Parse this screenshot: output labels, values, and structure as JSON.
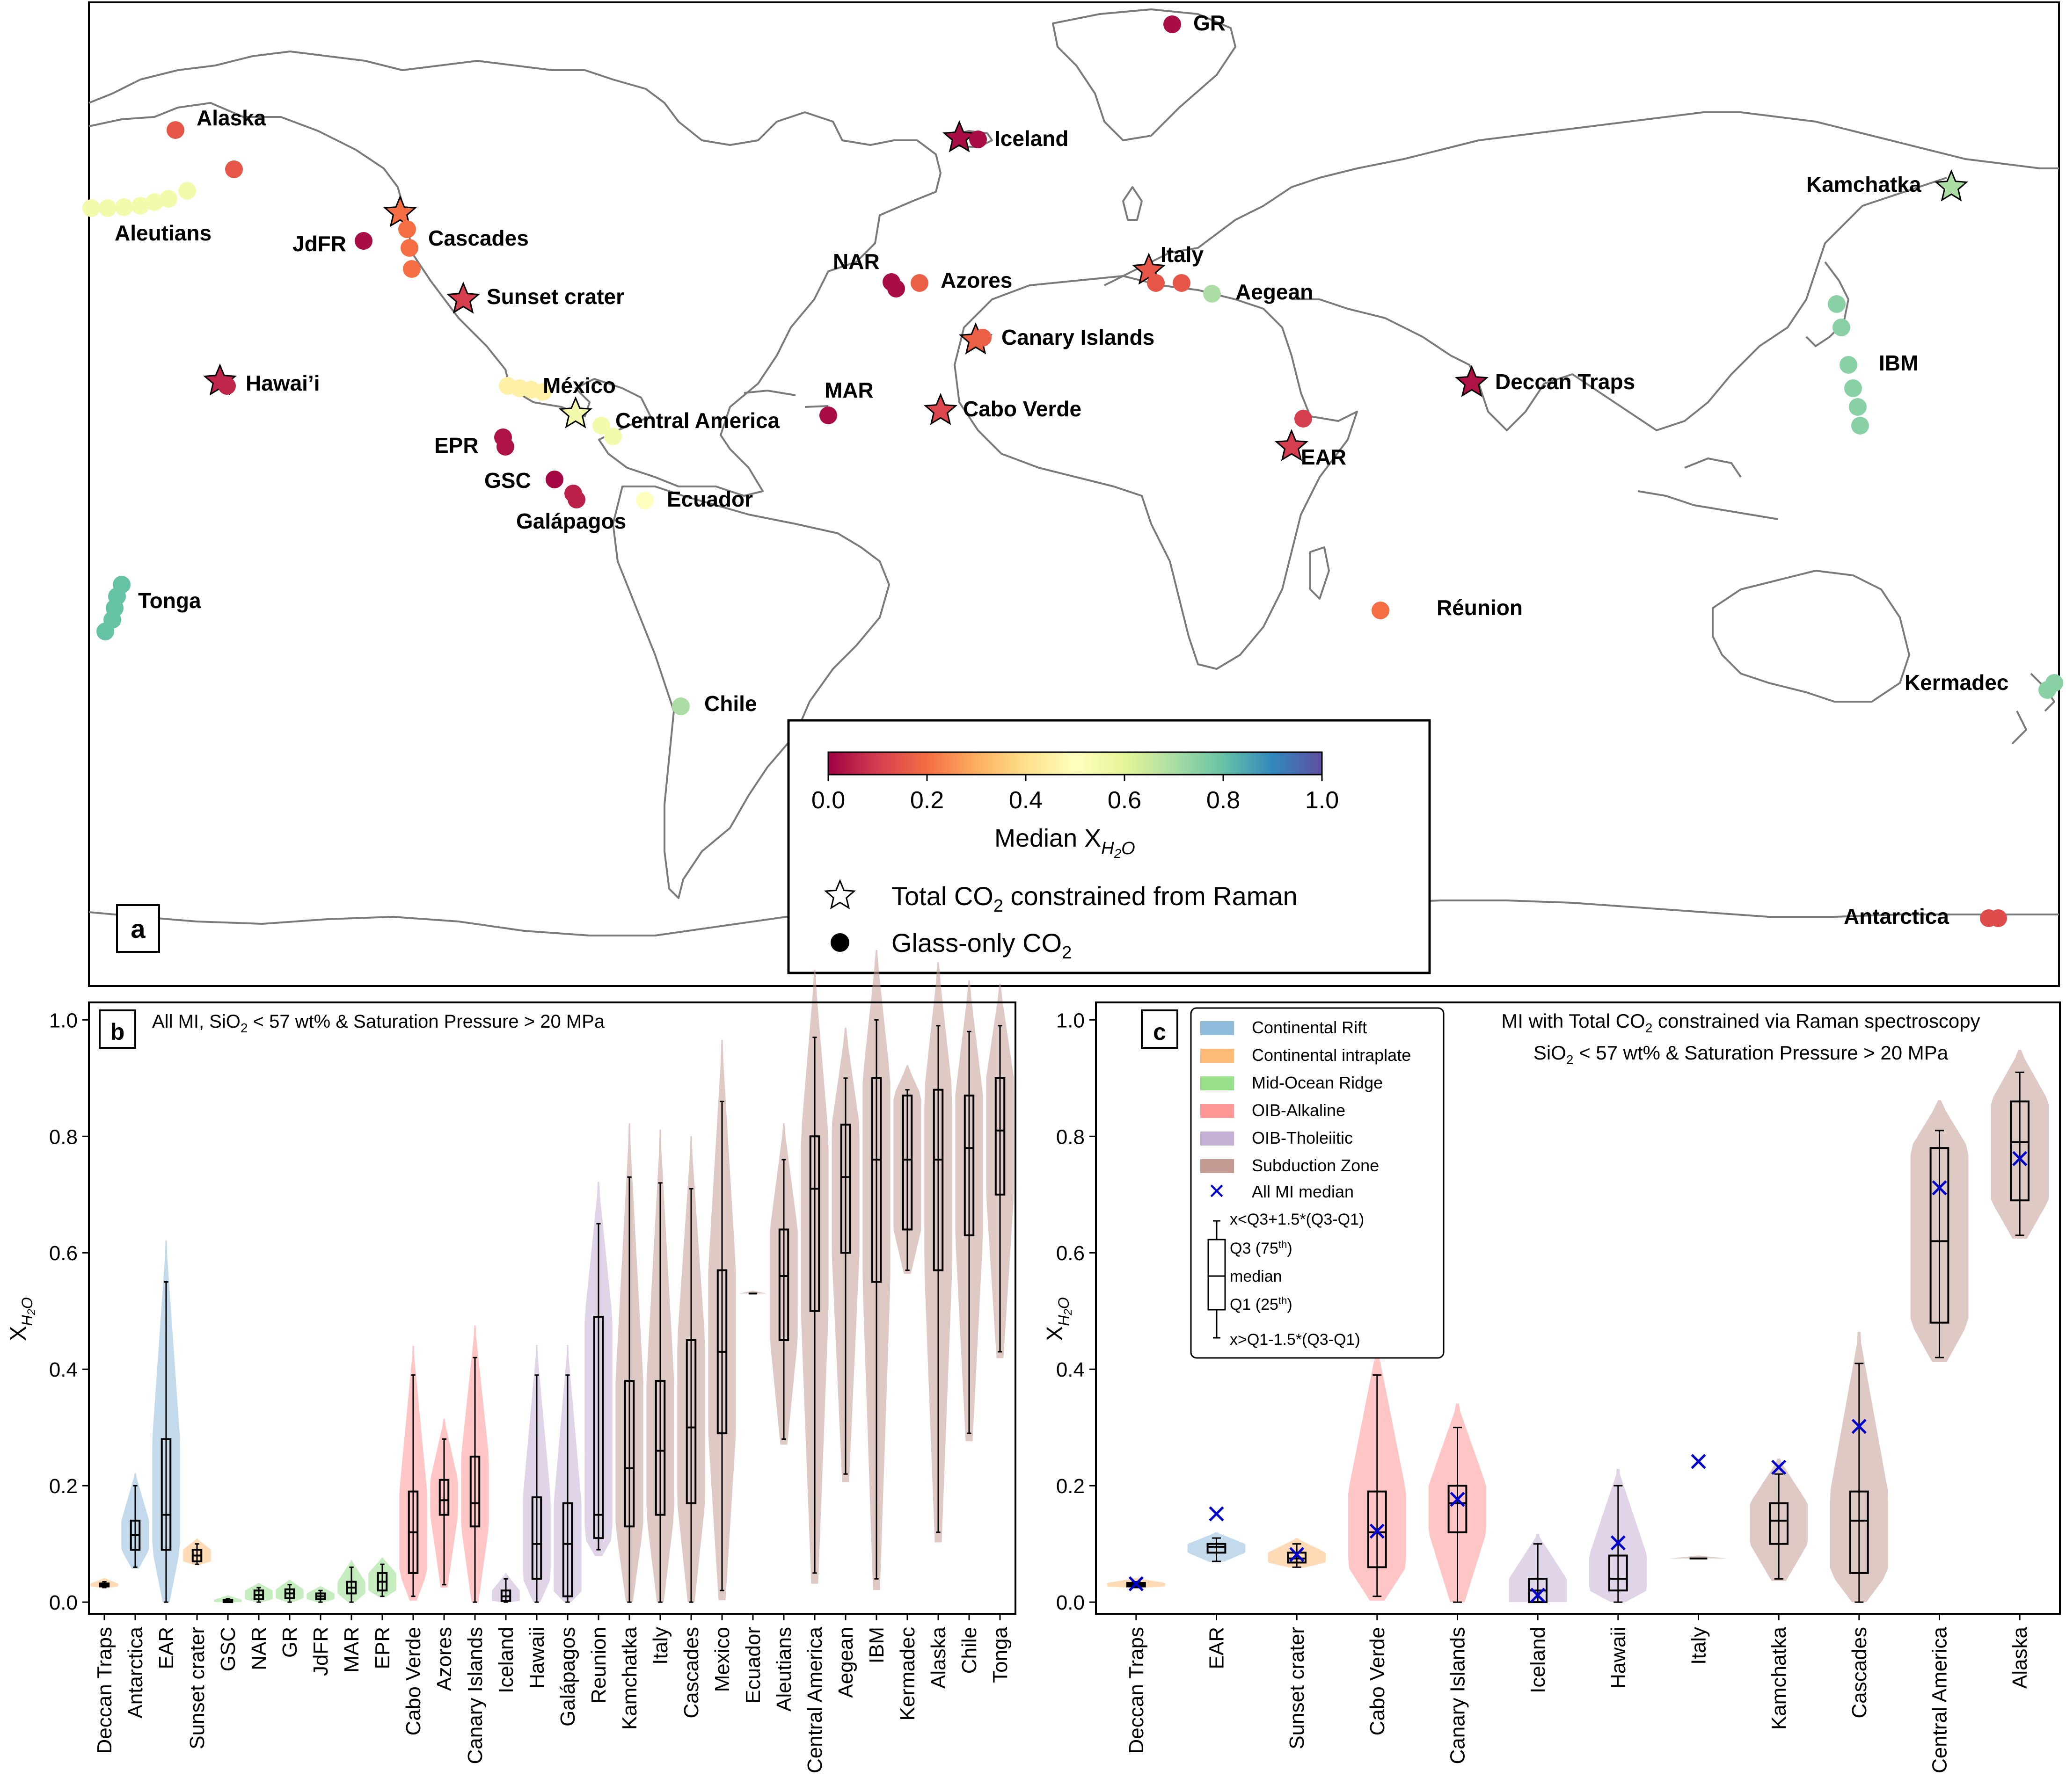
{
  "panels": {
    "a": {
      "letter": "a",
      "colorbar": {
        "label": "Median X",
        "label_sub": "H2O",
        "ticks": [
          "0.0",
          "0.2",
          "0.4",
          "0.6",
          "0.8",
          "1.0"
        ],
        "colormap": [
          "#9e0142",
          "#d53e4f",
          "#f46d43",
          "#fdae61",
          "#fee08b",
          "#ffffbf",
          "#e6f598",
          "#abdda4",
          "#66c2a5",
          "#3288bd",
          "#5e4fa2"
        ]
      },
      "legend": {
        "star_label": "Total CO",
        "star_label_sub": "2",
        "star_label_tail": " constrained from Raman",
        "dot_label": "Glass-only CO",
        "dot_label_sub": "2"
      },
      "sites": [
        {
          "name": "GR",
          "value": 0.02,
          "marker": "circle"
        },
        {
          "name": "Alaska",
          "value": 0.15,
          "marker": "circle"
        },
        {
          "name": "Iceland",
          "value": 0.02,
          "marker": "star"
        },
        {
          "name": "Aleutians",
          "value": 0.55,
          "marker": "circle"
        },
        {
          "name": "JdFR",
          "value": 0.02,
          "marker": "circle"
        },
        {
          "name": "Cascades",
          "value": 0.2,
          "marker": "star"
        },
        {
          "name": "Kamchatka",
          "value": 0.7,
          "marker": "star"
        },
        {
          "name": "NAR",
          "value": 0.02,
          "marker": "circle"
        },
        {
          "name": "Azores",
          "value": 0.17,
          "marker": "circle"
        },
        {
          "name": "Italy",
          "value": 0.15,
          "marker": "star"
        },
        {
          "name": "Aegean",
          "value": 0.7,
          "marker": "circle"
        },
        {
          "name": "Sunset crater",
          "value": 0.1,
          "marker": "star"
        },
        {
          "name": "Canary Islands",
          "value": 0.17,
          "marker": "star"
        },
        {
          "name": "Hawai’i",
          "value": 0.06,
          "marker": "star"
        },
        {
          "name": "México",
          "value": 0.45,
          "marker": "circle"
        },
        {
          "name": "Deccan Traps",
          "value": 0.03,
          "marker": "star"
        },
        {
          "name": "IBM",
          "value": 0.75,
          "marker": "circle"
        },
        {
          "name": "MAR",
          "value": 0.02,
          "marker": "circle"
        },
        {
          "name": "Central America",
          "value": 0.55,
          "marker": "star"
        },
        {
          "name": "Cabo Verde",
          "value": 0.12,
          "marker": "star"
        },
        {
          "name": "EPR",
          "value": 0.03,
          "marker": "circle"
        },
        {
          "name": "EAR",
          "value": 0.1,
          "marker": "star"
        },
        {
          "name": "GSC",
          "value": 0.01,
          "marker": "circle"
        },
        {
          "name": "Galápagos",
          "value": 0.05,
          "marker": "circle"
        },
        {
          "name": "Ecuador",
          "value": 0.5,
          "marker": "circle"
        },
        {
          "name": "Tonga",
          "value": 0.8,
          "marker": "circle"
        },
        {
          "name": "Réunion",
          "value": 0.2,
          "marker": "circle"
        },
        {
          "name": "Kermadec",
          "value": 0.75,
          "marker": "circle"
        },
        {
          "name": "Chile",
          "value": 0.7,
          "marker": "circle"
        },
        {
          "name": "Antarctica",
          "value": 0.13,
          "marker": "circle"
        }
      ]
    },
    "b": {
      "letter": "b",
      "title": "All MI, SiO",
      "title_sub": "2",
      "title_tail": " < 57 wt% & Saturation Pressure > 20 MPa",
      "ylabel": "X",
      "ylabel_sub": "H2O"
    },
    "c": {
      "letter": "c",
      "title_line1": "MI with Total CO",
      "title_line1_sub": "2",
      "title_line1_tail": " constrained via Raman spectroscopy",
      "title_line2": "SiO",
      "title_line2_sub": "2",
      "title_line2_tail": " < 57 wt% & Saturation Pressure > 20 MPa",
      "ylabel": "X",
      "ylabel_sub": "H2O",
      "legend": {
        "items": [
          {
            "label": "Continental Rift",
            "color": "#8fbcdb"
          },
          {
            "label": "Continental intraplate",
            "color": "#ffbb78"
          },
          {
            "label": "Mid-Ocean Ridge",
            "color": "#98df8a"
          },
          {
            "label": "OIB-Alkaline",
            "color": "#ff9896"
          },
          {
            "label": "OIB-Tholeiitic",
            "color": "#c5b0d5"
          },
          {
            "label": "Subduction Zone",
            "color": "#c49c94"
          }
        ],
        "median_label": "All MI median",
        "box_upper": "x<Q3+1.5*(Q3-Q1)",
        "box_q3": "Q3 (75",
        "box_q3_sup": "th",
        "box_q3_tail": ")",
        "box_median": "median",
        "box_q1": "Q1 (25",
        "box_q1_sup": "th",
        "box_q1_tail": ")",
        "box_lower": "x>Q1-1.5*(Q3-Q1)"
      }
    }
  },
  "chart_data": [
    {
      "type": "scatter",
      "title": "",
      "colorbar_label": "Median X_H2O",
      "clim": [
        0.0,
        1.0
      ],
      "points": [
        {
          "site": "GR",
          "median_xh2o": 0.02
        },
        {
          "site": "Alaska",
          "median_xh2o": 0.15
        },
        {
          "site": "Iceland",
          "median_xh2o": 0.02
        },
        {
          "site": "Aleutians",
          "median_xh2o": 0.55
        },
        {
          "site": "JdFR",
          "median_xh2o": 0.02
        },
        {
          "site": "Cascades",
          "median_xh2o": 0.2
        },
        {
          "site": "Kamchatka",
          "median_xh2o": 0.7
        },
        {
          "site": "NAR",
          "median_xh2o": 0.02
        },
        {
          "site": "Azores",
          "median_xh2o": 0.17
        },
        {
          "site": "Italy",
          "median_xh2o": 0.15
        },
        {
          "site": "Aegean",
          "median_xh2o": 0.7
        },
        {
          "site": "Sunset crater",
          "median_xh2o": 0.1
        },
        {
          "site": "Canary Islands",
          "median_xh2o": 0.17
        },
        {
          "site": "Hawai’i",
          "median_xh2o": 0.06
        },
        {
          "site": "México",
          "median_xh2o": 0.45
        },
        {
          "site": "Deccan Traps",
          "median_xh2o": 0.03
        },
        {
          "site": "IBM",
          "median_xh2o": 0.75
        },
        {
          "site": "MAR",
          "median_xh2o": 0.02
        },
        {
          "site": "Central America",
          "median_xh2o": 0.55
        },
        {
          "site": "Cabo Verde",
          "median_xh2o": 0.12
        },
        {
          "site": "EPR",
          "median_xh2o": 0.03
        },
        {
          "site": "EAR",
          "median_xh2o": 0.1
        },
        {
          "site": "GSC",
          "median_xh2o": 0.01
        },
        {
          "site": "Galápagos",
          "median_xh2o": 0.05
        },
        {
          "site": "Ecuador",
          "median_xh2o": 0.5
        },
        {
          "site": "Tonga",
          "median_xh2o": 0.8
        },
        {
          "site": "Réunion",
          "median_xh2o": 0.2
        },
        {
          "site": "Kermadec",
          "median_xh2o": 0.75
        },
        {
          "site": "Chile",
          "median_xh2o": 0.7
        },
        {
          "site": "Antarctica",
          "median_xh2o": 0.13
        }
      ]
    },
    {
      "type": "box",
      "title": "All MI, SiO2 < 57 wt% & Saturation Pressure > 20 MPa",
      "ylabel": "X_H2O",
      "ylim": [
        -0.02,
        1.03
      ],
      "yticks": [
        "0.0",
        "0.2",
        "0.4",
        "0.6",
        "0.8",
        "1.0"
      ],
      "categories": [
        "Deccan Traps",
        "Antarctica",
        "EAR",
        "Sunset crater",
        "GSC",
        "NAR",
        "GR",
        "JdFR",
        "MAR",
        "EPR",
        "Cabo Verde",
        "Azores",
        "Canary Islands",
        "Iceland",
        "Hawaii",
        "Galápagos",
        "Reunion",
        "Kamchatka",
        "Italy",
        "Cascades",
        "Mexico",
        "Ecuador",
        "Aleutians",
        "Central America",
        "Aegean",
        "IBM",
        "Kermadec",
        "Alaska",
        "Chile",
        "Tonga"
      ],
      "groups": [
        "Continental intraplate",
        "Continental Rift",
        "Continental Rift",
        "Continental intraplate",
        "Mid-Ocean Ridge",
        "Mid-Ocean Ridge",
        "Mid-Ocean Ridge",
        "Mid-Ocean Ridge",
        "Mid-Ocean Ridge",
        "Mid-Ocean Ridge",
        "OIB-Alkaline",
        "OIB-Alkaline",
        "OIB-Alkaline",
        "OIB-Tholeiitic",
        "OIB-Tholeiitic",
        "OIB-Tholeiitic",
        "OIB-Tholeiitic",
        "Subduction Zone",
        "Subduction Zone",
        "Subduction Zone",
        "Subduction Zone",
        "Subduction Zone",
        "Subduction Zone",
        "Subduction Zone",
        "Subduction Zone",
        "Subduction Zone",
        "Subduction Zone",
        "Subduction Zone",
        "Subduction Zone",
        "Subduction Zone"
      ],
      "whisker_low": [
        0.025,
        0.06,
        0.0,
        0.065,
        0.0,
        0.0,
        0.0,
        0.0,
        0.0,
        0.01,
        0.01,
        0.03,
        0.0,
        0.0,
        0.0,
        0.0,
        0.09,
        0.0,
        0.0,
        0.0,
        0.02,
        0.53,
        0.28,
        0.05,
        0.22,
        0.04,
        0.57,
        0.12,
        0.29,
        0.43
      ],
      "q1": [
        0.027,
        0.09,
        0.09,
        0.07,
        0.0,
        0.005,
        0.007,
        0.005,
        0.015,
        0.02,
        0.05,
        0.15,
        0.13,
        0.002,
        0.04,
        0.01,
        0.11,
        0.13,
        0.15,
        0.17,
        0.29,
        0.53,
        0.45,
        0.5,
        0.6,
        0.55,
        0.64,
        0.57,
        0.63,
        0.7
      ],
      "median": [
        0.03,
        0.115,
        0.15,
        0.08,
        0.002,
        0.012,
        0.015,
        0.01,
        0.025,
        0.035,
        0.12,
        0.175,
        0.17,
        0.01,
        0.1,
        0.1,
        0.15,
        0.23,
        0.26,
        0.3,
        0.43,
        0.53,
        0.56,
        0.71,
        0.73,
        0.76,
        0.76,
        0.76,
        0.78,
        0.81
      ],
      "q3": [
        0.032,
        0.14,
        0.28,
        0.09,
        0.004,
        0.02,
        0.022,
        0.015,
        0.035,
        0.05,
        0.19,
        0.21,
        0.25,
        0.02,
        0.18,
        0.17,
        0.49,
        0.38,
        0.38,
        0.45,
        0.57,
        0.53,
        0.64,
        0.8,
        0.82,
        0.9,
        0.87,
        0.88,
        0.87,
        0.9
      ],
      "whisker_high": [
        0.035,
        0.2,
        0.55,
        0.1,
        0.006,
        0.025,
        0.03,
        0.02,
        0.06,
        0.065,
        0.39,
        0.28,
        0.42,
        0.04,
        0.39,
        0.39,
        0.65,
        0.73,
        0.72,
        0.71,
        0.86,
        0.53,
        0.76,
        0.97,
        0.9,
        1.0,
        0.88,
        0.99,
        0.98,
        0.99
      ]
    },
    {
      "type": "box",
      "title": "MI with Total CO2 constrained via Raman spectroscopy SiO2 < 57 wt% & Saturation Pressure > 20 MPa",
      "ylabel": "X_H2O",
      "ylim": [
        -0.02,
        1.03
      ],
      "yticks": [
        "0.0",
        "0.2",
        "0.4",
        "0.6",
        "0.8",
        "1.0"
      ],
      "categories": [
        "Deccan Traps",
        "EAR",
        "Sunset crater",
        "Cabo Verde",
        "Canary Islands",
        "Iceland",
        "Hawaii",
        "Italy",
        "Kamchatka",
        "Cascades",
        "Central America",
        "Alaska"
      ],
      "groups": [
        "Continental intraplate",
        "Continental Rift",
        "Continental intraplate",
        "OIB-Alkaline",
        "OIB-Alkaline",
        "OIB-Tholeiitic",
        "OIB-Tholeiitic",
        "Subduction Zone",
        "Subduction Zone",
        "Subduction Zone",
        "Subduction Zone",
        "Subduction Zone"
      ],
      "whisker_low": [
        0.025,
        0.07,
        0.06,
        0.01,
        0.0,
        0.0,
        0.0,
        0.075,
        0.04,
        0.0,
        0.42,
        0.63
      ],
      "q1": [
        0.027,
        0.085,
        0.068,
        0.06,
        0.12,
        0.0,
        0.02,
        0.075,
        0.1,
        0.05,
        0.48,
        0.69
      ],
      "median": [
        0.03,
        0.095,
        0.075,
        0.12,
        0.17,
        0.02,
        0.04,
        0.075,
        0.14,
        0.14,
        0.62,
        0.79
      ],
      "q3": [
        0.033,
        0.1,
        0.085,
        0.19,
        0.2,
        0.04,
        0.08,
        0.075,
        0.17,
        0.19,
        0.78,
        0.86
      ],
      "whisker_high": [
        0.035,
        0.11,
        0.1,
        0.39,
        0.3,
        0.1,
        0.2,
        0.075,
        0.22,
        0.41,
        0.81,
        0.91
      ],
      "all_mi_median": [
        0.03,
        0.15,
        0.08,
        0.12,
        0.175,
        0.01,
        0.1,
        0.24,
        0.23,
        0.3,
        0.71,
        0.76
      ]
    }
  ]
}
